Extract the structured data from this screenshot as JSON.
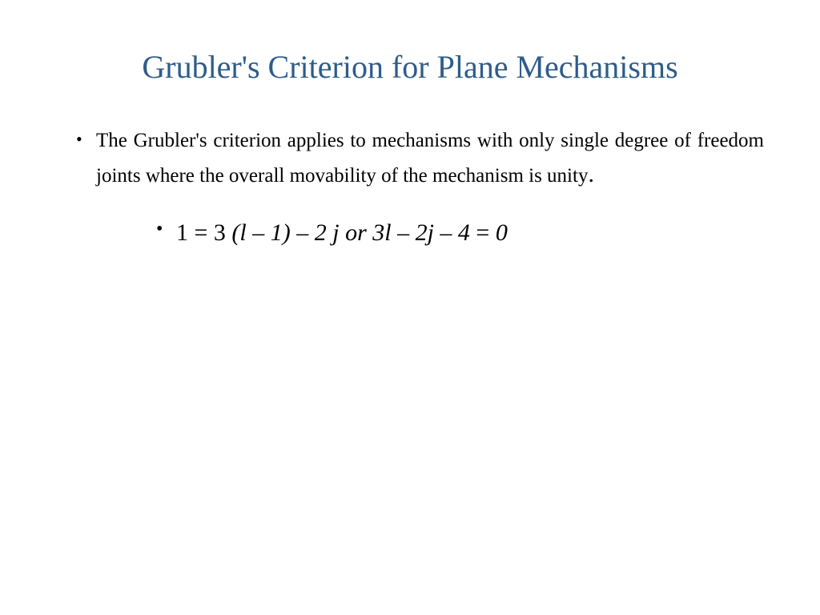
{
  "slide": {
    "title": "Grubler's Criterion for Plane Mechanisms",
    "title_color": "#2e5c8a",
    "title_fontsize": 40,
    "background_color": "#ffffff",
    "body_text_color": "#000000",
    "body_fontsize_level1": 25,
    "body_fontsize_level2": 30,
    "font_family": "Times New Roman",
    "bullets": {
      "level1": {
        "text_prefix": "The Grubler's criterion applies to mechanisms with only single degree of freedom joints where the overall movability of the mechanism is unity",
        "text_suffix": "."
      },
      "level2": {
        "formula_part1": "1 = 3 ",
        "formula_italic1": "(l – 1) – 2 j or 3l – 2j – 4 ",
        "formula_part2": "= ",
        "formula_italic2": "0"
      }
    }
  }
}
